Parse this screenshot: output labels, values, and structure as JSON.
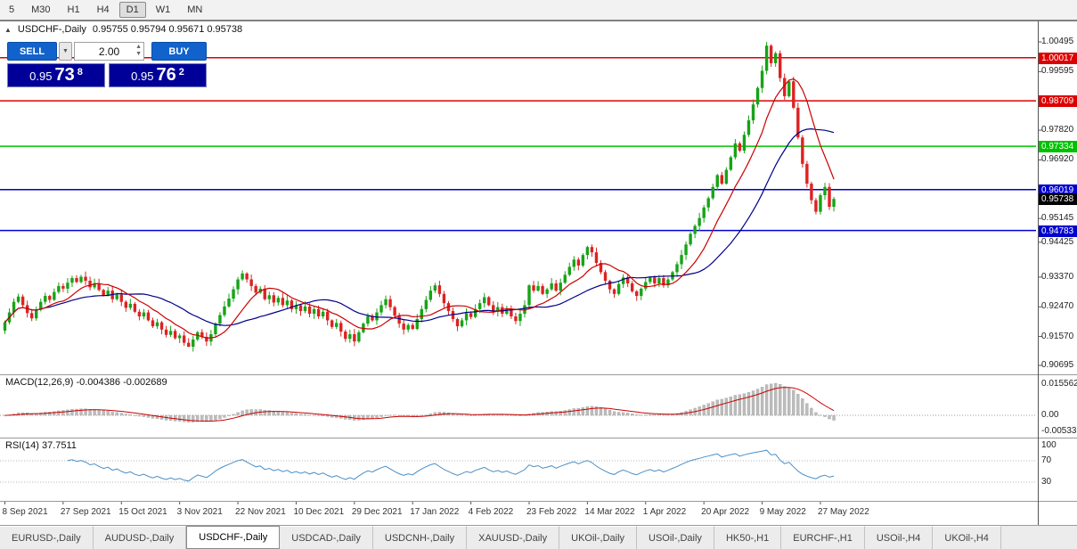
{
  "toolbar": {
    "timeframes": [
      {
        "label": "5",
        "active": false
      },
      {
        "label": "M30",
        "active": false
      },
      {
        "label": "H1",
        "active": false
      },
      {
        "label": "H4",
        "active": false
      },
      {
        "label": "D1",
        "active": true
      },
      {
        "label": "W1",
        "active": false
      },
      {
        "label": "MN",
        "active": false
      }
    ]
  },
  "icons": {
    "panel_toggle": "▲",
    "dropdown_arrow": "▼",
    "spin_up": "▲",
    "spin_down": "▼"
  },
  "chart_header": {
    "symbol": "USDCHF-,Daily",
    "ohlc": "0.95755 0.95794 0.95671 0.95738"
  },
  "trade_panel": {
    "sell_label": "SELL",
    "buy_label": "BUY",
    "volume": "2.00",
    "sell_price": {
      "prefix": "0.95",
      "main": "73",
      "sup": "8"
    },
    "buy_price": {
      "prefix": "0.95",
      "main": "76",
      "sup": "2"
    }
  },
  "macd": {
    "label": "MACD(12,26,9) -0.004386 -0.002689",
    "axis": [
      "0.015562",
      "0.00",
      "-0.005335"
    ]
  },
  "rsi": {
    "label": "RSI(14) 37.7511",
    "axis": [
      "100",
      "70",
      "30"
    ]
  },
  "colors": {
    "bull": "#17a317",
    "bear": "#dd2222",
    "ma_fast": "#cc0000",
    "ma_slow": "#000088",
    "macd_hist": "#bcbcbc",
    "macd_signal": "#cc0000",
    "rsi_line": "#4a8fc7",
    "current_badge": "#000000"
  },
  "chart_data": {
    "type": "candlestick",
    "symbol": "USDCHF",
    "timeframe": "Daily",
    "current": {
      "open": 0.95755,
      "high": 0.95794,
      "low": 0.95671,
      "close": 0.95738
    },
    "high": 1.00495,
    "low": 0.9125,
    "ylim": [
      0.90479,
      1.00684
    ],
    "y_ticks": [
      1.00495,
      0.99595,
      0.9782,
      0.9692,
      0.95145,
      0.94425,
      0.9337,
      0.9247,
      0.9157,
      0.90695
    ],
    "levels": [
      {
        "price": 1.00017,
        "label": "1.00017",
        "color": "#dd0000"
      },
      {
        "price": 0.98709,
        "label": "0.98709",
        "color": "#dd0000"
      },
      {
        "price": 0.97334,
        "label": "0.97334",
        "color": "#00c000"
      },
      {
        "price": 0.96019,
        "label": "0.96019",
        "color": "#0000cc"
      },
      {
        "price": 0.94783,
        "label": "0.94783",
        "color": "#0000cc"
      }
    ],
    "x_labels": [
      "8 Sep 2021",
      "27 Sep 2021",
      "15 Oct 2021",
      "3 Nov 2021",
      "22 Nov 2021",
      "10 Dec 2021",
      "29 Dec 2021",
      "17 Jan 2022",
      "4 Feb 2022",
      "23 Feb 2022",
      "14 Mar 2022",
      "1 Apr 2022",
      "20 Apr 2022",
      "9 May 2022",
      "27 May 2022"
    ],
    "bars_per_label": 13,
    "closes": [
      0.92,
      0.923,
      0.9262,
      0.9278,
      0.9252,
      0.9228,
      0.9212,
      0.9238,
      0.9262,
      0.928,
      0.9268,
      0.9292,
      0.931,
      0.9302,
      0.932,
      0.9334,
      0.9322,
      0.9338,
      0.9326,
      0.9306,
      0.9318,
      0.9298,
      0.9282,
      0.9296,
      0.927,
      0.9284,
      0.9262,
      0.9244,
      0.9256,
      0.9232,
      0.9218,
      0.923,
      0.9206,
      0.9188,
      0.92,
      0.9178,
      0.9162,
      0.9174,
      0.9152,
      0.916,
      0.9138,
      0.9126,
      0.9148,
      0.917,
      0.9156,
      0.9142,
      0.9164,
      0.9196,
      0.9222,
      0.9248,
      0.9272,
      0.93,
      0.933,
      0.9348,
      0.933,
      0.931,
      0.929,
      0.9302,
      0.927,
      0.9282,
      0.926,
      0.9274,
      0.9252,
      0.9266,
      0.924,
      0.9252,
      0.9234,
      0.9248,
      0.9226,
      0.924,
      0.9218,
      0.9232,
      0.9206,
      0.9186,
      0.9198,
      0.9172,
      0.915,
      0.9164,
      0.9142,
      0.917,
      0.9196,
      0.9218,
      0.9206,
      0.923,
      0.9252,
      0.927,
      0.9246,
      0.922,
      0.9196,
      0.9178,
      0.9192,
      0.918,
      0.921,
      0.924,
      0.9268,
      0.9296,
      0.9312,
      0.9286,
      0.9258,
      0.9234,
      0.921,
      0.9188,
      0.9206,
      0.9228,
      0.9216,
      0.924,
      0.9258,
      0.9276,
      0.9252,
      0.9232,
      0.9246,
      0.9226,
      0.924,
      0.9218,
      0.9204,
      0.9226,
      0.9252,
      0.9312,
      0.9296,
      0.931,
      0.9286,
      0.93,
      0.9318,
      0.9296,
      0.932,
      0.9344,
      0.9368,
      0.939,
      0.9372,
      0.9404,
      0.9428,
      0.9412,
      0.938,
      0.9352,
      0.9326,
      0.93,
      0.9286,
      0.9316,
      0.9336,
      0.9318,
      0.9294,
      0.928,
      0.9302,
      0.9322,
      0.9336,
      0.9318,
      0.9334,
      0.9312,
      0.933,
      0.9352,
      0.9376,
      0.9404,
      0.9436,
      0.9468,
      0.9492,
      0.9516,
      0.9548,
      0.9576,
      0.961,
      0.9646,
      0.962,
      0.9662,
      0.97,
      0.9742,
      0.972,
      0.9768,
      0.9812,
      0.986,
      0.991,
      0.9962,
      1.0038,
      0.9985,
      1.0015,
      0.994,
      0.9885,
      0.993,
      0.985,
      0.976,
      0.968,
      0.962,
      0.957,
      0.9535,
      0.9585,
      0.961,
      0.955,
      0.95738
    ],
    "moving_averages": [
      {
        "color": "#000088",
        "period": 24
      },
      {
        "color": "#cc0000",
        "period": 10
      }
    ],
    "indicators": [
      {
        "name": "MACD",
        "params": "12,26,9",
        "values": [
          -0.004386,
          -0.002689
        ],
        "axis_ticks": [
          0.015562,
          0.0,
          -0.005335
        ]
      },
      {
        "name": "RSI",
        "params": "14",
        "value": 37.7511,
        "axis_ticks": [
          100,
          70,
          30
        ]
      }
    ]
  },
  "tabs": [
    {
      "label": "EURUSD-,Daily",
      "active": false
    },
    {
      "label": "AUDUSD-,Daily",
      "active": false
    },
    {
      "label": "USDCHF-,Daily",
      "active": true
    },
    {
      "label": "USDCAD-,Daily",
      "active": false
    },
    {
      "label": "USDCNH-,Daily",
      "active": false
    },
    {
      "label": "XAUUSD-,Daily",
      "active": false
    },
    {
      "label": "UKOil-,Daily",
      "active": false
    },
    {
      "label": "USOil-,Daily",
      "active": false
    },
    {
      "label": "HK50-,H1",
      "active": false
    },
    {
      "label": "EURCHF-,H1",
      "active": false
    },
    {
      "label": "USOil-,H4",
      "active": false
    },
    {
      "label": "UKOil-,H4",
      "active": false
    }
  ]
}
